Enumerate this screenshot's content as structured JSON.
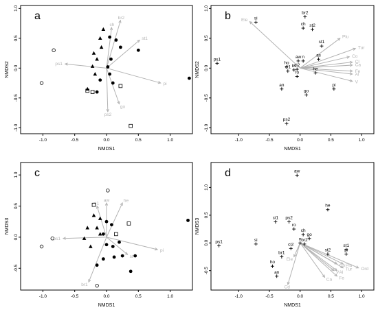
{
  "colors": {
    "vector": "#b3b3b3",
    "point": "#000000"
  },
  "chart_data": [
    {
      "type": "scatter",
      "panel_label": "a",
      "xlabel": "NMDS1",
      "ylabel": "NMDS2",
      "xlim": [
        -1.35,
        1.35
      ],
      "ylim": [
        -1.1,
        1.05
      ],
      "xticks": [
        "-1.0",
        "-0.5",
        "0.0",
        "0.5",
        "1.0"
      ],
      "yticks": [
        "-1.0",
        "-0.5",
        "0.0",
        "0.5",
        "1.0"
      ],
      "points": [
        {
          "x": -0.83,
          "y": 0.3,
          "s": "circle-open"
        },
        {
          "x": -1.02,
          "y": -0.25,
          "s": "circle-open"
        },
        {
          "x": -0.3,
          "y": -0.38,
          "s": "square-open"
        },
        {
          "x": -0.22,
          "y": -0.4,
          "s": "square-open"
        },
        {
          "x": 0.22,
          "y": -0.3,
          "s": "square-open"
        },
        {
          "x": 0.38,
          "y": -0.97,
          "s": "square-open"
        },
        {
          "x": -0.05,
          "y": 0.65,
          "s": "triangle"
        },
        {
          "x": -0.1,
          "y": 0.5,
          "s": "triangle"
        },
        {
          "x": -0.08,
          "y": 0.35,
          "s": "triangle"
        },
        {
          "x": -0.2,
          "y": 0.25,
          "s": "triangle"
        },
        {
          "x": -0.15,
          "y": 0.15,
          "s": "triangle"
        },
        {
          "x": -0.22,
          "y": 0.03,
          "s": "triangle"
        },
        {
          "x": -0.18,
          "y": -0.1,
          "s": "triangle"
        },
        {
          "x": -0.3,
          "y": -0.35,
          "s": "triangle"
        },
        {
          "x": 0.05,
          "y": 0.52,
          "s": "circle"
        },
        {
          "x": 0.15,
          "y": 0.47,
          "s": "circle"
        },
        {
          "x": 0.22,
          "y": 0.35,
          "s": "circle"
        },
        {
          "x": 0.07,
          "y": 0.15,
          "s": "circle"
        },
        {
          "x": 0.02,
          "y": 0.02,
          "s": "circle"
        },
        {
          "x": 0.5,
          "y": 0.3,
          "s": "circle"
        },
        {
          "x": 0.1,
          "y": -0.25,
          "s": "circle"
        },
        {
          "x": 0.05,
          "y": -0.1,
          "s": "circle"
        },
        {
          "x": -0.1,
          "y": -0.2,
          "s": "circle"
        },
        {
          "x": -0.15,
          "y": -0.4,
          "s": "circle"
        },
        {
          "x": 1.3,
          "y": -0.17,
          "s": "circle"
        }
      ],
      "vectors": [
        {
          "label": "br2",
          "x": 0.22,
          "y": 0.8
        },
        {
          "label": "ch",
          "x": 0.08,
          "y": 0.68
        },
        {
          "label": "st1",
          "x": 0.52,
          "y": 0.47
        },
        {
          "label": "ps1",
          "x": -0.65,
          "y": 0.07
        },
        {
          "label": "pi",
          "x": 0.85,
          "y": -0.25
        },
        {
          "label": "go",
          "x": 0.2,
          "y": -0.6
        },
        {
          "label": "ps2",
          "x": 0.02,
          "y": -0.73
        }
      ]
    },
    {
      "type": "scatter",
      "panel_label": "b",
      "xlabel": "NMDS1",
      "ylabel": "NMDS2",
      "xlim": [
        -1.45,
        1.2
      ],
      "ylim": [
        -1.1,
        1.05
      ],
      "xticks": [
        "-1.0",
        "-0.5",
        "0.0",
        "0.5",
        "1.0"
      ],
      "yticks": [
        "-1.0",
        "-0.5",
        "0.0",
        "0.5",
        "1.0"
      ],
      "sites": [
        {
          "label": "si",
          "x": -0.72,
          "y": 0.77
        },
        {
          "label": "br2",
          "x": 0.08,
          "y": 0.86
        },
        {
          "label": "ch",
          "x": 0.05,
          "y": 0.67
        },
        {
          "label": "st2",
          "x": 0.2,
          "y": 0.65
        },
        {
          "label": "st1",
          "x": 0.35,
          "y": 0.37
        },
        {
          "label": "ps1",
          "x": -1.35,
          "y": 0.08
        },
        {
          "label": "ho",
          "x": -0.22,
          "y": 0.02
        },
        {
          "label": "ci1",
          "x": -0.2,
          "y": -0.05
        },
        {
          "label": "aw",
          "x": -0.03,
          "y": 0.12
        },
        {
          "label": "n",
          "x": 0.05,
          "y": 0.12
        },
        {
          "label": "br",
          "x": -0.1,
          "y": -0.03
        },
        {
          "label": "ci2",
          "x": -0.05,
          "y": -0.02
        },
        {
          "label": "ro",
          "x": -0.05,
          "y": -0.14
        },
        {
          "label": "an",
          "x": -0.3,
          "y": -0.35
        },
        {
          "label": "go",
          "x": 0.1,
          "y": -0.45
        },
        {
          "label": "as",
          "x": 0.3,
          "y": 0.15
        },
        {
          "label": "he",
          "x": 0.25,
          "y": -0.08
        },
        {
          "label": "pi",
          "x": 0.55,
          "y": -0.35
        },
        {
          "label": "ps2",
          "x": -0.22,
          "y": -0.93
        }
      ],
      "vectors": [
        {
          "label": "Ele",
          "x": -0.82,
          "y": 0.78
        },
        {
          "label": "Plu",
          "x": 0.65,
          "y": 0.5
        },
        {
          "label": "Tur",
          "x": 0.9,
          "y": 0.33
        },
        {
          "label": "Co",
          "x": 0.8,
          "y": 0.19
        },
        {
          "label": "Cl",
          "x": 0.85,
          "y": 0.1
        },
        {
          "label": "Ca",
          "x": 0.85,
          "y": 0.05
        },
        {
          "label": "Fe",
          "x": 0.85,
          "y": -0.05
        },
        {
          "label": "Al",
          "x": 0.85,
          "y": -0.1
        },
        {
          "label": "V",
          "x": 0.85,
          "y": -0.22
        }
      ]
    },
    {
      "type": "scatter",
      "panel_label": "c",
      "xlabel": "NMDS1",
      "ylabel": "NMDS3",
      "xlim": [
        -1.35,
        1.35
      ],
      "ylim": [
        -0.85,
        1.2
      ],
      "xticks": [
        "-1.0",
        "-0.5",
        "0.0",
        "0.5",
        "1.0"
      ],
      "yticks": [
        "-0.5",
        "0.0",
        "0.5",
        "1.0"
      ],
      "points": [
        {
          "x": -0.85,
          "y": -0.02,
          "s": "circle-open"
        },
        {
          "x": -1.02,
          "y": -0.15,
          "s": "circle-open"
        },
        {
          "x": 0.02,
          "y": 0.75,
          "s": "circle-open"
        },
        {
          "x": -0.15,
          "y": -0.78,
          "s": "circle-open"
        },
        {
          "x": -0.2,
          "y": 0.52,
          "s": "square-open"
        },
        {
          "x": 0.15,
          "y": 0.05,
          "s": "square-open"
        },
        {
          "x": 0.35,
          "y": 0.22,
          "s": "square-open"
        },
        {
          "x": -0.2,
          "y": 0.35,
          "s": "triangle"
        },
        {
          "x": -0.1,
          "y": 0.3,
          "s": "triangle"
        },
        {
          "x": -0.3,
          "y": 0.15,
          "s": "triangle"
        },
        {
          "x": -0.15,
          "y": 0.15,
          "s": "triangle"
        },
        {
          "x": -0.1,
          "y": 0.05,
          "s": "triangle"
        },
        {
          "x": -0.35,
          "y": -0.02,
          "s": "triangle"
        },
        {
          "x": -0.25,
          "y": -0.15,
          "s": "triangle"
        },
        {
          "x": 0.0,
          "y": 0.25,
          "s": "circle"
        },
        {
          "x": 0.08,
          "y": 0.2,
          "s": "circle"
        },
        {
          "x": -0.05,
          "y": 0.05,
          "s": "circle"
        },
        {
          "x": 0.0,
          "y": -0.12,
          "s": "circle"
        },
        {
          "x": 0.1,
          "y": -0.15,
          "s": "circle"
        },
        {
          "x": 0.2,
          "y": -0.08,
          "s": "circle"
        },
        {
          "x": 0.12,
          "y": -0.32,
          "s": "circle"
        },
        {
          "x": 0.25,
          "y": -0.3,
          "s": "circle"
        },
        {
          "x": 0.45,
          "y": -0.3,
          "s": "circle"
        },
        {
          "x": 0.38,
          "y": -0.55,
          "s": "circle"
        },
        {
          "x": -0.05,
          "y": -0.35,
          "s": "circle"
        },
        {
          "x": -0.15,
          "y": -0.45,
          "s": "circle"
        },
        {
          "x": 1.28,
          "y": 0.27,
          "s": "circle"
        }
      ],
      "vectors": [
        {
          "label": "aw",
          "x": 0.0,
          "y": 0.55
        },
        {
          "label": "he",
          "x": 0.25,
          "y": 0.55
        },
        {
          "label": "ci1",
          "x": -0.15,
          "y": 0.5
        },
        {
          "label": "pi",
          "x": 0.8,
          "y": -0.2
        },
        {
          "label": "ps1",
          "x": -0.68,
          "y": -0.02
        },
        {
          "label": "br1",
          "x": -0.28,
          "y": -0.72
        },
        {
          "label": "st",
          "x": 0.33,
          "y": -0.28
        }
      ]
    },
    {
      "type": "scatter",
      "panel_label": "d",
      "xlabel": "NMDS1",
      "ylabel": "NMDS3",
      "xlim": [
        -1.45,
        1.2
      ],
      "ylim": [
        -0.85,
        1.45
      ],
      "xticks": [
        "-1.0",
        "-0.5",
        "0.0",
        "0.5",
        "1.0"
      ],
      "yticks": [
        "-0.5",
        "0.0",
        "0.5",
        "1.0"
      ],
      "sites": [
        {
          "label": "aw",
          "x": -0.05,
          "y": 1.22
        },
        {
          "label": "he",
          "x": 0.45,
          "y": 0.6
        },
        {
          "label": "ci1",
          "x": -0.4,
          "y": 0.38
        },
        {
          "label": "ps2",
          "x": -0.18,
          "y": 0.38
        },
        {
          "label": "ro",
          "x": -0.1,
          "y": 0.25
        },
        {
          "label": "ch",
          "x": 0.05,
          "y": 0.15
        },
        {
          "label": "go",
          "x": 0.15,
          "y": 0.08
        },
        {
          "label": "ps1",
          "x": -1.32,
          "y": -0.05
        },
        {
          "label": "si",
          "x": -0.72,
          "y": -0.02
        },
        {
          "label": "ci2",
          "x": -0.15,
          "y": -0.1
        },
        {
          "label": "n",
          "x": 0.0,
          "y": 0.0
        },
        {
          "label": "br2",
          "x": 0.07,
          "y": -0.02
        },
        {
          "label": "br1",
          "x": -0.3,
          "y": -0.25
        },
        {
          "label": "ho",
          "x": -0.45,
          "y": -0.42
        },
        {
          "label": "an",
          "x": -0.38,
          "y": -0.6
        },
        {
          "label": "st1",
          "x": 0.75,
          "y": -0.12
        },
        {
          "label": "st2",
          "x": 0.45,
          "y": -0.2
        },
        {
          "label": "pi",
          "x": 0.75,
          "y": -0.2
        }
      ],
      "vectors": [
        {
          "label": "Ord",
          "x": 0.95,
          "y": -0.45
        },
        {
          "label": "Plu",
          "x": 0.7,
          "y": -0.38
        },
        {
          "label": "Co",
          "x": 0.6,
          "y": -0.38
        },
        {
          "label": "Tur",
          "x": 0.7,
          "y": -0.45
        },
        {
          "label": "Al",
          "x": 0.6,
          "y": -0.5
        },
        {
          "label": "V",
          "x": 0.55,
          "y": -0.5
        },
        {
          "label": "Fe",
          "x": 0.6,
          "y": -0.6
        },
        {
          "label": "Ca",
          "x": 0.4,
          "y": -0.62
        },
        {
          "label": "Cd",
          "x": -0.2,
          "y": -0.75
        },
        {
          "label": "Ele",
          "x": -0.1,
          "y": -0.25
        }
      ]
    }
  ]
}
